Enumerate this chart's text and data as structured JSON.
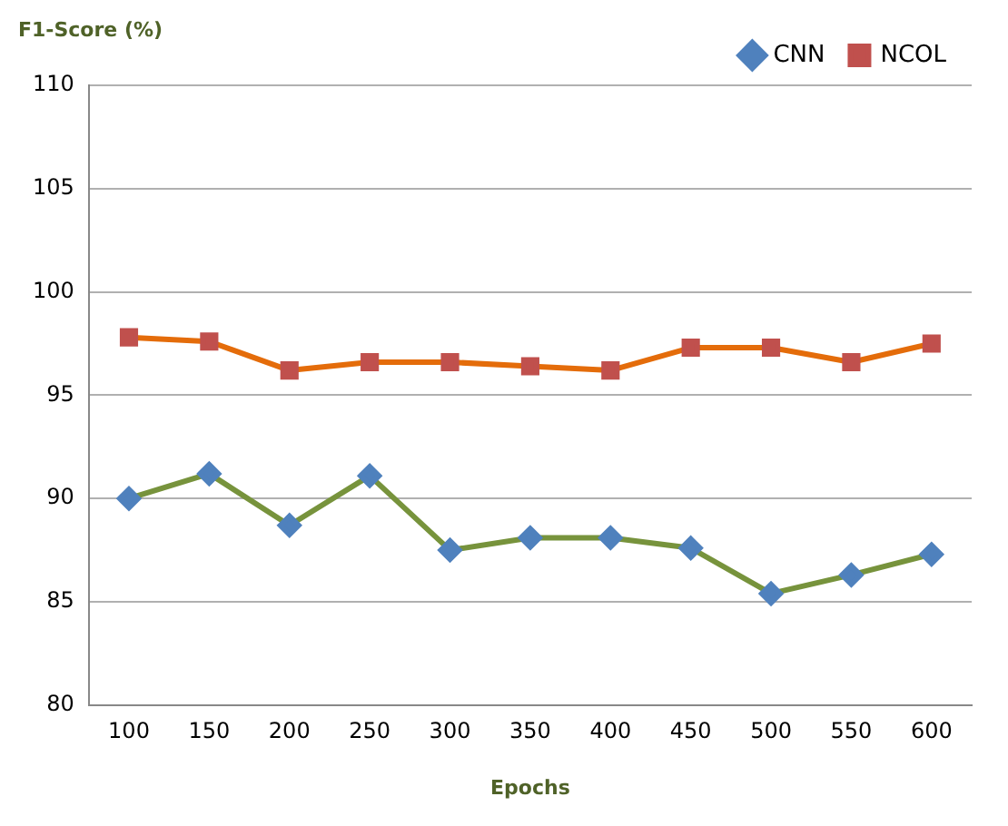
{
  "chart_data": {
    "type": "line",
    "ylabel": "F1-Score (%)",
    "xlabel": "Epochs",
    "categories": [
      "100",
      "150",
      "200",
      "250",
      "300",
      "350",
      "400",
      "450",
      "500",
      "550",
      "600"
    ],
    "series": [
      {
        "name": "CNN",
        "color": "#77933c",
        "marker": "diamond",
        "values": [
          90.0,
          91.2,
          88.7,
          91.1,
          87.5,
          88.1,
          88.1,
          87.6,
          85.4,
          86.3,
          87.3
        ]
      },
      {
        "name": "NCOL",
        "color": "#e46c0a",
        "marker": "square",
        "values": [
          97.8,
          97.6,
          96.2,
          96.6,
          96.6,
          96.4,
          96.2,
          97.3,
          97.3,
          96.6,
          97.5
        ]
      }
    ],
    "ylim": [
      80,
      110
    ],
    "yticks": [
      80,
      85,
      90,
      95,
      100,
      105,
      110
    ],
    "grid": "y",
    "legend": "top right"
  }
}
